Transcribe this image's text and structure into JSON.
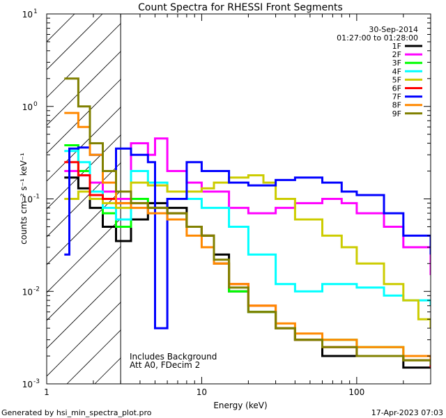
{
  "chart_data": {
    "type": "line",
    "title": "Count Spectra for RHESSI Front Segments",
    "xlabel": "Energy (keV)",
    "ylabel": "counts cm⁻² s⁻¹ keV⁻¹",
    "xscale": "log",
    "yscale": "log",
    "xlim": [
      1,
      300
    ],
    "ylim": [
      0.001,
      10
    ],
    "x_tick_labels": [
      "1",
      "10",
      "100"
    ],
    "y_tick_labels": [
      {
        "base": "10",
        "exp": "-3"
      },
      {
        "base": "10",
        "exp": "-2"
      },
      {
        "base": "10",
        "exp": "-1"
      },
      {
        "base": "10",
        "exp": "0"
      },
      {
        "base": "10",
        "exp": "1"
      }
    ],
    "date": "30-Sep-2014",
    "time_range": "01:27:00 to 01:28:00",
    "shaded_region_max_energy": 3,
    "annotation_lines": [
      "Includes Background",
      "Att A0, FDecim 2"
    ],
    "footer_left": "Generated by hsi_min_spectra_plot.pro",
    "footer_right": "17-Apr-2023 07:03",
    "legend_position": "top-right",
    "series": [
      {
        "name": "1F",
        "color": "#000000",
        "points": [
          [
            1.3,
            0.17
          ],
          [
            1.6,
            0.13
          ],
          [
            1.9,
            0.08
          ],
          [
            2.3,
            0.05
          ],
          [
            2.8,
            0.035
          ],
          [
            3.5,
            0.06
          ],
          [
            4.5,
            0.09
          ],
          [
            6,
            0.08
          ],
          [
            8,
            0.05
          ],
          [
            10,
            0.04
          ],
          [
            12,
            0.025
          ],
          [
            15,
            0.01
          ],
          [
            20,
            0.006
          ],
          [
            30,
            0.004
          ],
          [
            40,
            0.003
          ],
          [
            60,
            0.002
          ],
          [
            100,
            0.002
          ],
          [
            200,
            0.0015
          ],
          [
            300,
            0.0015
          ]
        ]
      },
      {
        "name": "2F",
        "color": "#ff00ff",
        "points": [
          [
            1.3,
            0.2
          ],
          [
            1.6,
            0.18
          ],
          [
            1.9,
            0.15
          ],
          [
            2.3,
            0.12
          ],
          [
            2.8,
            0.1
          ],
          [
            3.5,
            0.4
          ],
          [
            4.5,
            0.3
          ],
          [
            5,
            0.45
          ],
          [
            6,
            0.2
          ],
          [
            8,
            0.15
          ],
          [
            10,
            0.12
          ],
          [
            15,
            0.08
          ],
          [
            20,
            0.07
          ],
          [
            30,
            0.08
          ],
          [
            40,
            0.09
          ],
          [
            60,
            0.1
          ],
          [
            80,
            0.09
          ],
          [
            100,
            0.07
          ],
          [
            150,
            0.05
          ],
          [
            200,
            0.03
          ],
          [
            300,
            0.015
          ]
        ]
      },
      {
        "name": "3F",
        "color": "#00ff00",
        "points": [
          [
            1.3,
            0.38
          ],
          [
            1.6,
            0.2
          ],
          [
            1.9,
            0.1
          ],
          [
            2.3,
            0.07
          ],
          [
            2.8,
            0.05
          ],
          [
            3.5,
            0.1
          ],
          [
            4.5,
            0.08
          ],
          [
            6,
            0.07
          ],
          [
            8,
            0.05
          ],
          [
            10,
            0.04
          ],
          [
            12,
            0.02
          ],
          [
            15,
            0.01
          ],
          [
            20,
            0.006
          ],
          [
            30,
            0.004
          ],
          [
            40,
            0.003
          ],
          [
            60,
            0.003
          ],
          [
            100,
            0.0025
          ],
          [
            200,
            0.0018
          ],
          [
            300,
            0.0016
          ]
        ]
      },
      {
        "name": "4F",
        "color": "#00ffff",
        "points": [
          [
            1.3,
            0.33
          ],
          [
            1.6,
            0.25
          ],
          [
            1.9,
            0.12
          ],
          [
            2.3,
            0.08
          ],
          [
            2.8,
            0.06
          ],
          [
            3.5,
            0.2
          ],
          [
            4.5,
            0.15
          ],
          [
            6,
            0.12
          ],
          [
            8,
            0.1
          ],
          [
            10,
            0.08
          ],
          [
            15,
            0.05
          ],
          [
            20,
            0.025
          ],
          [
            30,
            0.012
          ],
          [
            40,
            0.01
          ],
          [
            60,
            0.012
          ],
          [
            80,
            0.012
          ],
          [
            100,
            0.011
          ],
          [
            150,
            0.009
          ],
          [
            200,
            0.008
          ],
          [
            300,
            0.007
          ]
        ]
      },
      {
        "name": "5F",
        "color": "#cccc00",
        "points": [
          [
            1.3,
            0.1
          ],
          [
            1.6,
            0.12
          ],
          [
            1.9,
            0.1
          ],
          [
            2.3,
            0.09
          ],
          [
            2.8,
            0.08
          ],
          [
            3.5,
            0.15
          ],
          [
            4.5,
            0.14
          ],
          [
            6,
            0.12
          ],
          [
            8,
            0.12
          ],
          [
            10,
            0.13
          ],
          [
            12,
            0.15
          ],
          [
            15,
            0.17
          ],
          [
            20,
            0.18
          ],
          [
            25,
            0.15
          ],
          [
            30,
            0.1
          ],
          [
            40,
            0.06
          ],
          [
            60,
            0.04
          ],
          [
            80,
            0.03
          ],
          [
            100,
            0.02
          ],
          [
            150,
            0.012
          ],
          [
            200,
            0.008
          ],
          [
            250,
            0.005
          ],
          [
            300,
            0.004
          ]
        ]
      },
      {
        "name": "6F",
        "color": "#ff0000",
        "points": [
          [
            1.3,
            0.25
          ],
          [
            1.6,
            0.18
          ],
          [
            1.9,
            0.11
          ],
          [
            2.3,
            0.1
          ],
          [
            2.8,
            0.09
          ],
          [
            3.5,
            0.09
          ],
          [
            4.5,
            0.08
          ],
          [
            6,
            0.07
          ],
          [
            8,
            0.05
          ],
          [
            10,
            0.04
          ],
          [
            12,
            0.02
          ],
          [
            15,
            0.012
          ],
          [
            20,
            0.007
          ],
          [
            30,
            0.004
          ],
          [
            40,
            0.003
          ],
          [
            60,
            0.0025
          ],
          [
            100,
            0.002
          ],
          [
            200,
            0.0018
          ],
          [
            300,
            0.0015
          ]
        ]
      },
      {
        "name": "7F",
        "color": "#0000ff",
        "points": [
          [
            1.3,
            0.025
          ],
          [
            1.4,
            0.35
          ],
          [
            1.6,
            0.36
          ],
          [
            1.9,
            0.3
          ],
          [
            2.3,
            0.2
          ],
          [
            2.8,
            0.35
          ],
          [
            3.5,
            0.3
          ],
          [
            4.5,
            0.25
          ],
          [
            5,
            0.004
          ],
          [
            6,
            0.1
          ],
          [
            8,
            0.25
          ],
          [
            10,
            0.2
          ],
          [
            15,
            0.15
          ],
          [
            20,
            0.14
          ],
          [
            30,
            0.16
          ],
          [
            40,
            0.17
          ],
          [
            60,
            0.15
          ],
          [
            80,
            0.12
          ],
          [
            100,
            0.11
          ],
          [
            150,
            0.07
          ],
          [
            200,
            0.04
          ],
          [
            300,
            0.025
          ]
        ]
      },
      {
        "name": "8F",
        "color": "#ff8800",
        "points": [
          [
            1.3,
            0.85
          ],
          [
            1.6,
            0.6
          ],
          [
            1.9,
            0.3
          ],
          [
            2.3,
            0.15
          ],
          [
            2.8,
            0.09
          ],
          [
            3.5,
            0.08
          ],
          [
            4.5,
            0.07
          ],
          [
            6,
            0.06
          ],
          [
            8,
            0.04
          ],
          [
            10,
            0.03
          ],
          [
            12,
            0.02
          ],
          [
            15,
            0.012
          ],
          [
            20,
            0.007
          ],
          [
            30,
            0.0045
          ],
          [
            40,
            0.0035
          ],
          [
            60,
            0.003
          ],
          [
            100,
            0.0025
          ],
          [
            200,
            0.002
          ],
          [
            300,
            0.0018
          ]
        ]
      },
      {
        "name": "9F",
        "color": "#808000",
        "points": [
          [
            1.3,
            2.0
          ],
          [
            1.6,
            1.0
          ],
          [
            1.9,
            0.4
          ],
          [
            2.3,
            0.2
          ],
          [
            2.8,
            0.12
          ],
          [
            3.5,
            0.09
          ],
          [
            4.5,
            0.08
          ],
          [
            6,
            0.07
          ],
          [
            8,
            0.05
          ],
          [
            10,
            0.04
          ],
          [
            12,
            0.022
          ],
          [
            15,
            0.011
          ],
          [
            20,
            0.006
          ],
          [
            30,
            0.004
          ],
          [
            40,
            0.003
          ],
          [
            60,
            0.0025
          ],
          [
            100,
            0.002
          ],
          [
            200,
            0.0018
          ],
          [
            300,
            0.0016
          ]
        ]
      }
    ]
  }
}
